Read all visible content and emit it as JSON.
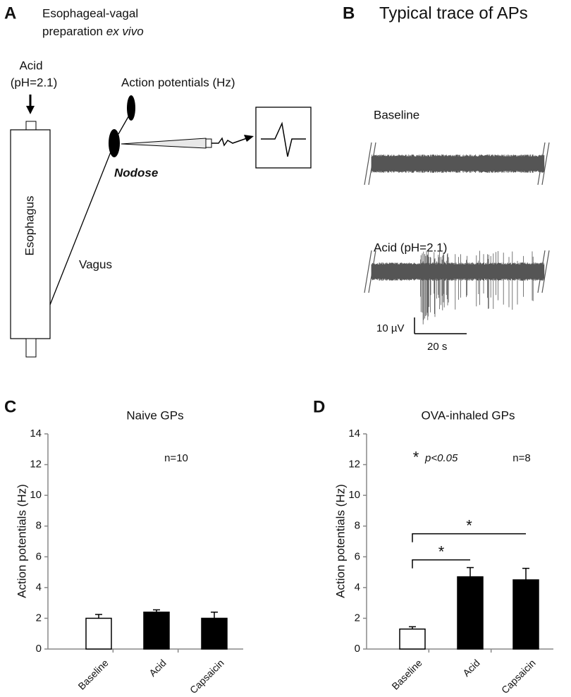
{
  "panel_a": {
    "letter": "A",
    "title": "Esophageal-vagal",
    "subtitle": "preparation",
    "subtitle_italic": "ex vivo",
    "stimulus": "Acid",
    "stimulus_ph": "(pH=2.1)",
    "recording": "Action potentials (Hz)",
    "ganglion": "Nodose",
    "organ": "Esophagus",
    "nerve": "Vagus"
  },
  "panel_b": {
    "letter": "B",
    "title": "Typical trace of APs",
    "trace_1": "Baseline",
    "trace_2": "Acid (pH=2.1)",
    "scale_y": "10 µV",
    "scale_x": "20 s"
  },
  "chart_data": [
    {
      "type": "bar",
      "panel": "C",
      "title": "Naive GPs",
      "y_label": "Action potentials (Hz)",
      "categories": [
        "Baseline",
        "Acid",
        "Capsaicin"
      ],
      "values": [
        2.0,
        2.4,
        2.0
      ],
      "errors": [
        0.25,
        0.15,
        0.4
      ],
      "colors": [
        "#ffffff",
        "#000000",
        "#000000"
      ],
      "ylim": [
        0,
        14
      ],
      "yticks": [
        0,
        2,
        4,
        6,
        8,
        10,
        12,
        14
      ],
      "annotations": [
        "n=10"
      ]
    },
    {
      "type": "bar",
      "panel": "D",
      "title": "OVA-inhaled GPs",
      "y_label": "Action potentials (Hz)",
      "categories": [
        "Baseline",
        "Acid",
        "Capsaicin"
      ],
      "values": [
        1.3,
        4.7,
        4.5
      ],
      "errors": [
        0.15,
        0.6,
        0.75
      ],
      "colors": [
        "#ffffff",
        "#000000",
        "#000000"
      ],
      "ylim": [
        0,
        14
      ],
      "yticks": [
        0,
        2,
        4,
        6,
        8,
        10,
        12,
        14
      ],
      "annotations": [
        "*",
        "p<0.05",
        "n=8"
      ],
      "significance": [
        "*",
        "*"
      ]
    }
  ]
}
